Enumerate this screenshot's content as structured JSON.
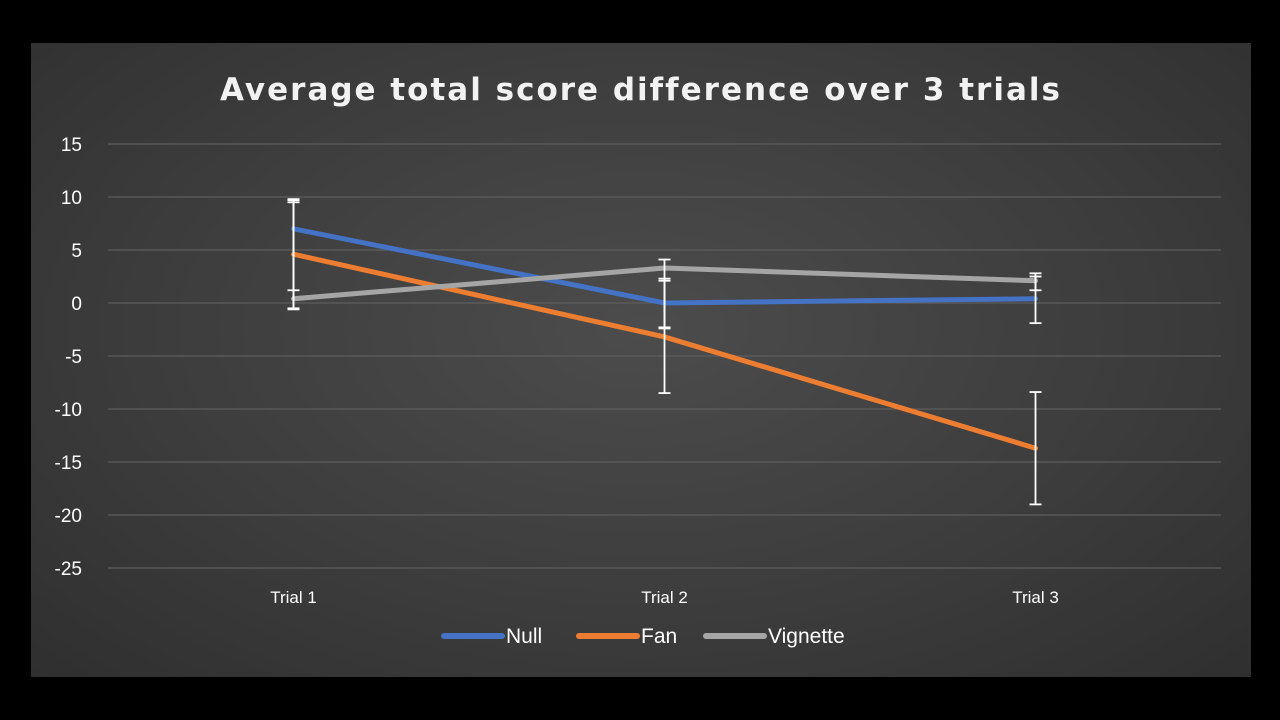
{
  "chart_data": {
    "type": "line",
    "title": "Average total score difference over 3 trials",
    "xlabel": "",
    "ylabel": "",
    "categories": [
      "Trial 1",
      "Trial 2",
      "Trial 3"
    ],
    "ylim": [
      -25,
      15
    ],
    "yticks": [
      15,
      10,
      5,
      0,
      -5,
      -10,
      -15,
      -20,
      -25
    ],
    "grid": true,
    "legend_position": "bottom",
    "series": [
      {
        "name": "Null",
        "color": "#4472c4",
        "values": [
          7.0,
          0.0,
          0.4
        ],
        "error": [
          null,
          2.3,
          null
        ]
      },
      {
        "name": "Fan",
        "color": "#ed7d31",
        "values": [
          4.6,
          -3.2,
          -13.7
        ],
        "error": [
          5.1,
          5.3,
          5.3
        ]
      },
      {
        "name": "Vignette",
        "color": "#a5a5a5",
        "values": [
          0.4,
          3.3,
          2.1
        ],
        "error": [
          null,
          null,
          null
        ]
      }
    ],
    "extra_error_bars": [
      {
        "category": 0,
        "upper": 9.8,
        "lower": -0.6
      },
      {
        "category": 0,
        "upper": 9.5,
        "lower": 1.2
      },
      {
        "category": 1,
        "upper": 4.1,
        "lower": -2.4
      },
      {
        "category": 2,
        "upper": 2.8,
        "lower": -1.9
      },
      {
        "category": 2,
        "upper": 2.5,
        "lower": 1.2
      }
    ]
  }
}
